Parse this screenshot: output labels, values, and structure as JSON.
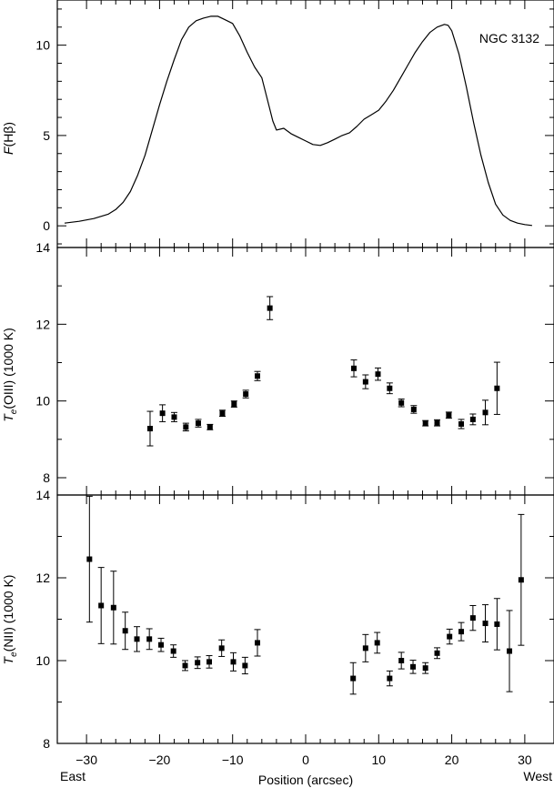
{
  "chart_data": [
    {
      "type": "line",
      "annotation": "NGC 3132",
      "ylabel_italic": "F",
      "ylabel_rest": "(Hβ)",
      "xlim": [
        -34,
        34
      ],
      "ylim": [
        -1.2,
        12.5
      ],
      "yticks": [
        0,
        5,
        10
      ],
      "x": [
        -33.0,
        -31.0,
        -29.0,
        -27.0,
        -26.0,
        -25.0,
        -24.0,
        -23.0,
        -22.0,
        -21.0,
        -20.0,
        -19.0,
        -18.0,
        -17.0,
        -16.0,
        -15.0,
        -14.0,
        -13.0,
        -12.0,
        -11.0,
        -10.0,
        -9.0,
        -8.0,
        -7.0,
        -6.0,
        -5.0,
        -4.5,
        -4.0,
        -3.0,
        -2.0,
        -1.0,
        0.0,
        1.0,
        2.0,
        3.0,
        4.0,
        5.0,
        6.0,
        7.0,
        8.0,
        9.0,
        10.0,
        11.0,
        12.0,
        13.0,
        14.0,
        15.0,
        16.0,
        17.0,
        18.0,
        19.0,
        19.5,
        20.0,
        21.0,
        22.0,
        23.0,
        24.0,
        25.0,
        26.0,
        27.0,
        28.0,
        29.0,
        30.0,
        31.0
      ],
      "y": [
        0.15,
        0.25,
        0.4,
        0.65,
        0.9,
        1.3,
        1.9,
        2.8,
        3.9,
        5.3,
        6.7,
        8.0,
        9.2,
        10.3,
        11.0,
        11.35,
        11.5,
        11.6,
        11.6,
        11.4,
        11.2,
        10.5,
        9.6,
        8.8,
        8.2,
        6.6,
        5.8,
        5.3,
        5.4,
        5.1,
        4.9,
        4.7,
        4.5,
        4.45,
        4.6,
        4.8,
        5.0,
        5.15,
        5.5,
        5.9,
        6.15,
        6.4,
        6.9,
        7.5,
        8.2,
        8.9,
        9.6,
        10.2,
        10.7,
        11.0,
        11.15,
        11.1,
        10.8,
        9.5,
        7.7,
        5.7,
        3.9,
        2.4,
        1.2,
        0.6,
        0.3,
        0.15,
        0.07,
        0.02
      ]
    },
    {
      "type": "scatter",
      "ylabel_italic": "T",
      "ylabel_sub": "e",
      "ylabel_rest": "(OIII) (1000 K)",
      "xlim": [
        -34,
        34
      ],
      "ylim": [
        7.8,
        14
      ],
      "yticks": [
        8,
        10,
        12,
        14
      ],
      "points": [
        {
          "x": -21.3,
          "y": 9.28,
          "err": 0.45
        },
        {
          "x": -19.6,
          "y": 9.68,
          "err": 0.22
        },
        {
          "x": -18.0,
          "y": 9.58,
          "err": 0.12
        },
        {
          "x": -16.4,
          "y": 9.32,
          "err": 0.1
        },
        {
          "x": -14.7,
          "y": 9.42,
          "err": 0.1
        },
        {
          "x": -13.1,
          "y": 9.32,
          "err": 0.07
        },
        {
          "x": -11.4,
          "y": 9.68,
          "err": 0.08
        },
        {
          "x": -9.8,
          "y": 9.92,
          "err": 0.08
        },
        {
          "x": -8.2,
          "y": 10.18,
          "err": 0.1
        },
        {
          "x": -6.6,
          "y": 10.65,
          "err": 0.12
        },
        {
          "x": -4.9,
          "y": 12.42,
          "err": 0.3
        },
        {
          "x": 6.6,
          "y": 10.85,
          "err": 0.22
        },
        {
          "x": 8.2,
          "y": 10.5,
          "err": 0.18
        },
        {
          "x": 9.9,
          "y": 10.7,
          "err": 0.16
        },
        {
          "x": 11.5,
          "y": 10.33,
          "err": 0.14
        },
        {
          "x": 13.1,
          "y": 9.95,
          "err": 0.1
        },
        {
          "x": 14.8,
          "y": 9.78,
          "err": 0.1
        },
        {
          "x": 16.4,
          "y": 9.42,
          "err": 0.07
        },
        {
          "x": 18.0,
          "y": 9.43,
          "err": 0.08
        },
        {
          "x": 19.6,
          "y": 9.63,
          "err": 0.08
        },
        {
          "x": 21.3,
          "y": 9.4,
          "err": 0.12
        },
        {
          "x": 22.9,
          "y": 9.52,
          "err": 0.14
        },
        {
          "x": 24.6,
          "y": 9.7,
          "err": 0.32
        },
        {
          "x": 26.2,
          "y": 10.33,
          "err": 0.68
        }
      ]
    },
    {
      "type": "scatter",
      "ylabel_italic": "T",
      "ylabel_sub": "e",
      "ylabel_rest": "(NII) (1000 K)",
      "xlabel": "Position (arcsec)",
      "xlim": [
        -34,
        34
      ],
      "ylim": [
        8,
        14
      ],
      "yticks": [
        8,
        10,
        12,
        14
      ],
      "xticks": [
        -30,
        -20,
        -10,
        0,
        10,
        20,
        30
      ],
      "xtick_labels": [
        "−30",
        "−20",
        "−10",
        "0",
        "10",
        "20",
        "30"
      ],
      "east_label": "East",
      "west_label": "West",
      "points": [
        {
          "x": -29.6,
          "y": 12.45,
          "err": 1.52
        },
        {
          "x": -28.0,
          "y": 11.33,
          "err": 0.92
        },
        {
          "x": -26.3,
          "y": 11.28,
          "err": 0.88
        },
        {
          "x": -24.7,
          "y": 10.72,
          "err": 0.45
        },
        {
          "x": -23.1,
          "y": 10.52,
          "err": 0.3
        },
        {
          "x": -21.4,
          "y": 10.52,
          "err": 0.25
        },
        {
          "x": -19.8,
          "y": 10.38,
          "err": 0.16
        },
        {
          "x": -18.1,
          "y": 10.23,
          "err": 0.15
        },
        {
          "x": -16.5,
          "y": 9.88,
          "err": 0.12
        },
        {
          "x": -14.8,
          "y": 9.95,
          "err": 0.14
        },
        {
          "x": -13.2,
          "y": 9.97,
          "err": 0.15
        },
        {
          "x": -11.5,
          "y": 10.3,
          "err": 0.2
        },
        {
          "x": -9.9,
          "y": 9.97,
          "err": 0.22
        },
        {
          "x": -8.3,
          "y": 9.88,
          "err": 0.2
        },
        {
          "x": -6.6,
          "y": 10.43,
          "err": 0.32
        },
        {
          "x": 6.5,
          "y": 9.57,
          "err": 0.38
        },
        {
          "x": 8.2,
          "y": 10.3,
          "err": 0.33
        },
        {
          "x": 9.8,
          "y": 10.43,
          "err": 0.25
        },
        {
          "x": 11.5,
          "y": 9.57,
          "err": 0.18
        },
        {
          "x": 13.1,
          "y": 10.0,
          "err": 0.2
        },
        {
          "x": 14.7,
          "y": 9.85,
          "err": 0.16
        },
        {
          "x": 16.4,
          "y": 9.82,
          "err": 0.13
        },
        {
          "x": 18.0,
          "y": 10.18,
          "err": 0.13
        },
        {
          "x": 19.7,
          "y": 10.58,
          "err": 0.18
        },
        {
          "x": 21.3,
          "y": 10.7,
          "err": 0.22
        },
        {
          "x": 22.9,
          "y": 11.03,
          "err": 0.3
        },
        {
          "x": 24.6,
          "y": 10.9,
          "err": 0.45
        },
        {
          "x": 26.2,
          "y": 10.88,
          "err": 0.62
        },
        {
          "x": 27.9,
          "y": 10.23,
          "err": 0.98
        },
        {
          "x": 29.5,
          "y": 11.95,
          "err": 1.58
        }
      ]
    }
  ]
}
